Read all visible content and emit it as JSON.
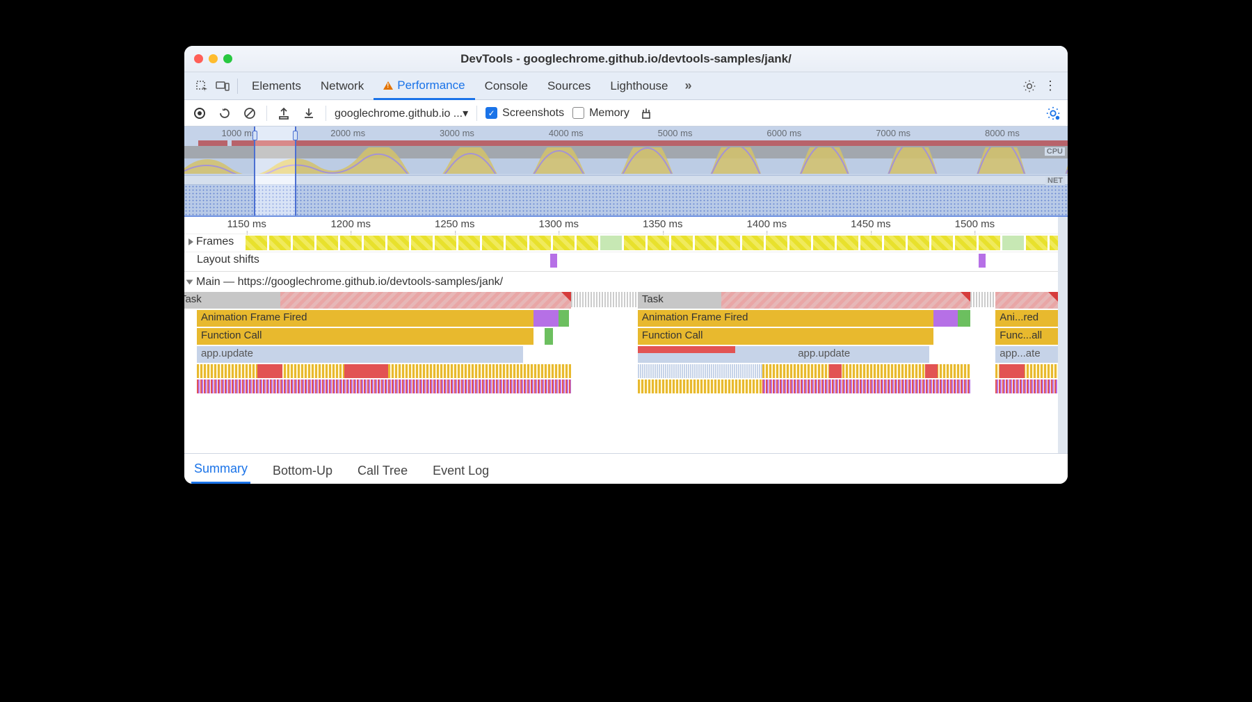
{
  "window": {
    "title": "DevTools - googlechrome.github.io/devtools-samples/jank/"
  },
  "panel_tabs": {
    "items": [
      "Elements",
      "Network",
      "Performance",
      "Console",
      "Sources",
      "Lighthouse"
    ],
    "active_index": 2,
    "has_warning_on_active": true
  },
  "toolbar": {
    "page_select": "googlechrome.github.io ...▾",
    "screenshots_label": "Screenshots",
    "screenshots_checked": true,
    "memory_label": "Memory",
    "memory_checked": false
  },
  "overview": {
    "range_ms": [
      500,
      8600
    ],
    "tick_step_ms": 1000,
    "tick_labels": [
      "1000 ms",
      "2000 ms",
      "3000 ms",
      "4000 ms",
      "5000 ms",
      "6000 ms",
      "7000 ms",
      "8000 ms"
    ],
    "selection_ms": [
      1140,
      1530
    ],
    "cpu_label": "CPU",
    "net_label": "NET",
    "colors": {
      "background": "#d4e1f5",
      "longtask_bar": "#c34b4b",
      "cpu_fill_script": "#e8c94b",
      "cpu_fill_render": "#a98bd8",
      "selection_border": "#4b6fd1"
    }
  },
  "detail": {
    "range_ms": [
      1120,
      1540
    ],
    "tick_step_ms": 50,
    "tick_labels": [
      "1150 ms",
      "1200 ms",
      "1250 ms",
      "1300 ms",
      "1350 ms",
      "1400 ms",
      "1450 ms",
      "1500 ms"
    ],
    "frames_label": "Frames",
    "frames": {
      "count": 36,
      "ok_indices": [
        15,
        32
      ]
    },
    "layout_shifts_label": "Layout shifts",
    "layout_shift_positions_ms": [
      1296,
      1502
    ],
    "main_label": "Main — https://googlechrome.github.io/devtools-samples/jank/",
    "flame": {
      "tasks": [
        {
          "start": 1126,
          "end": 1306,
          "label": "Task",
          "long": true
        },
        {
          "start": 1338,
          "end": 1498,
          "label": "Task",
          "long": true
        },
        {
          "start": 1510,
          "end": 1540,
          "label": "Task",
          "long": true
        }
      ],
      "aff": [
        {
          "start": 1126,
          "end": 1288,
          "label": "Animation Frame Fired",
          "violet_end": 1300,
          "green_end": 1305
        },
        {
          "start": 1338,
          "end": 1480,
          "label": "Animation Frame Fired",
          "violet_end": 1492,
          "green_end": 1498
        },
        {
          "start": 1510,
          "end": 1540,
          "label": "Ani...red"
        }
      ],
      "fcall": [
        {
          "start": 1126,
          "end": 1288,
          "label": "Function Call"
        },
        {
          "start": 1338,
          "end": 1480,
          "label": "Function Call"
        },
        {
          "start": 1510,
          "end": 1540,
          "label": "Func...all"
        }
      ],
      "appu": [
        {
          "start": 1126,
          "end": 1283,
          "label": "app.update"
        },
        {
          "start": 1338,
          "end": 1478,
          "label": "app.update",
          "label_offset": 0.55
        },
        {
          "start": 1510,
          "end": 1540,
          "label": "app...ate"
        }
      ]
    },
    "colors": {
      "task_gray": "#c7c7c7",
      "task_long_hatch_a": "#e9a6a6",
      "task_long_hatch_b": "#e6b7b7",
      "task_corner": "#d63b3b",
      "scripting": "#e8b92e",
      "rendering": "#b670e6",
      "painting": "#6cbf5f",
      "system": "#c6d3e8",
      "layout_shift": "#b670e6",
      "frame_jank_a": "#e8e12c",
      "frame_jank_b": "#f0ea5c",
      "frame_ok": "#c7e8b4"
    }
  },
  "bottom_tabs": {
    "items": [
      "Summary",
      "Bottom-Up",
      "Call Tree",
      "Event Log"
    ],
    "active_index": 0
  }
}
